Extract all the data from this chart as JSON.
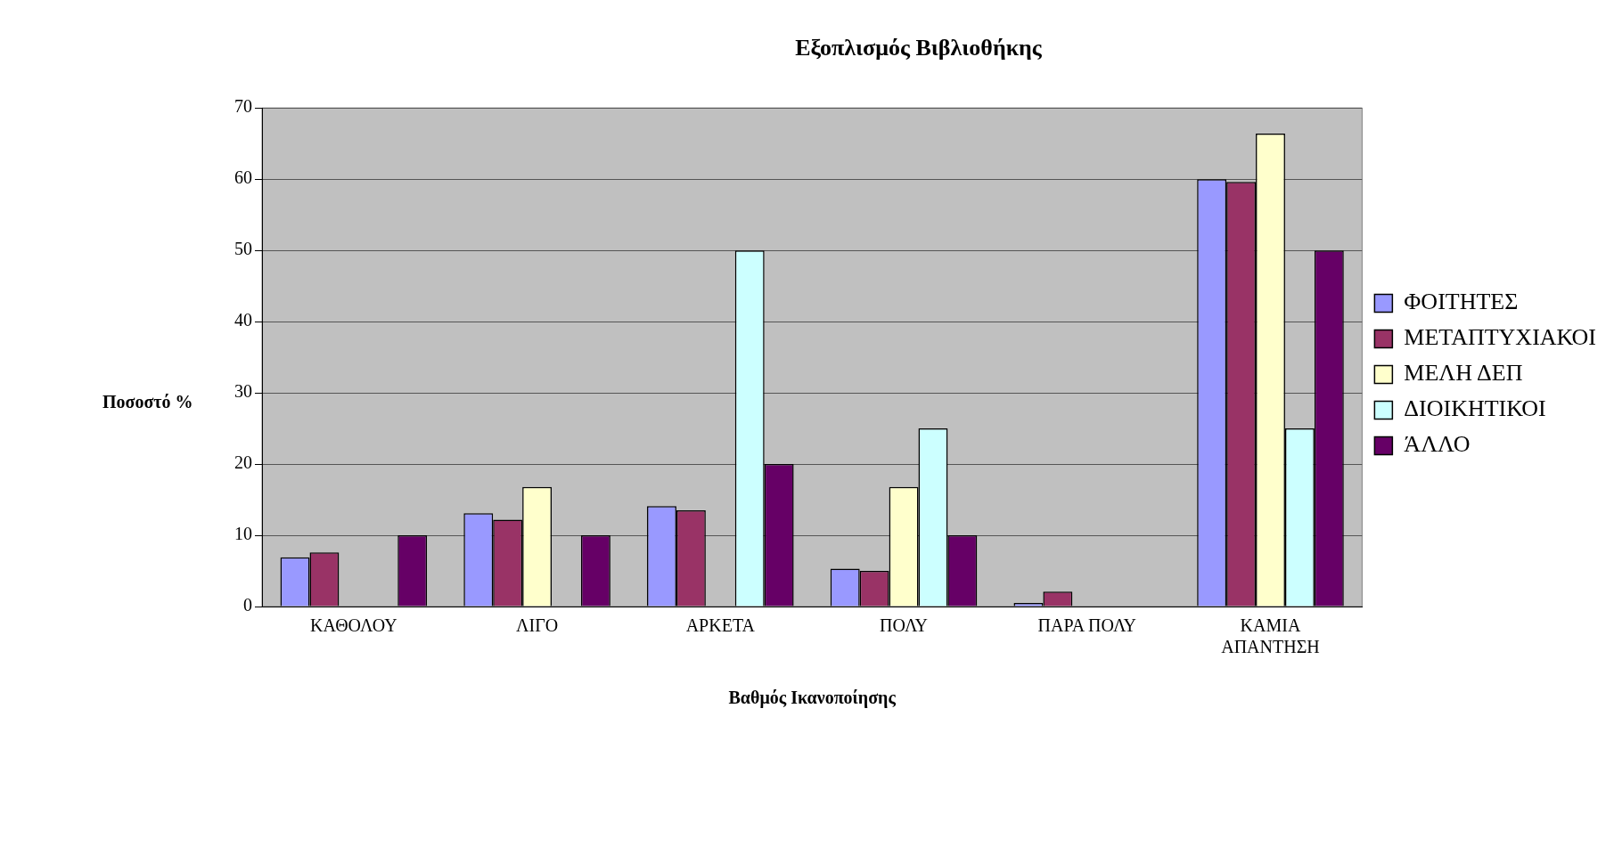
{
  "chart_data": {
    "type": "bar",
    "title": "Εξοπλισμός Βιβλιοθήκης",
    "xlabel": "Βαθμός Ικανοποίησης",
    "ylabel": "Ποσοστό %",
    "categories": [
      "ΚΑΘΟΛΟΥ",
      "ΛΙΓΟ",
      "ΑΡΚΕΤΑ",
      "ΠΟΛΥ",
      "ΠΑΡΑ ΠΟΛΥ",
      "ΚΑΜΙΑ ΑΠΑΝΤΗΣΗ"
    ],
    "series": [
      {
        "name": "ΦΟΙΤΗΤΕΣ",
        "color": "#9999ff",
        "values": [
          6.9,
          13.1,
          14.1,
          5.3,
          0.5,
          60.0
        ]
      },
      {
        "name": "ΜΕΤΑΠΤΥΧΙΑΚΟΙ",
        "color": "#993366",
        "values": [
          7.6,
          12.2,
          13.5,
          5.0,
          2.1,
          59.6
        ]
      },
      {
        "name": "ΜΕΛΗ ΔΕΠ",
        "color": "#ffffcc",
        "values": [
          0,
          16.8,
          0,
          16.8,
          0,
          66.4
        ]
      },
      {
        "name": "ΔΙΟΙΚΗΤΙΚΟΙ",
        "color": "#ccffff",
        "values": [
          0,
          0,
          50,
          25,
          0,
          25
        ]
      },
      {
        "name": "ΆΛΛΟ",
        "color": "#660066",
        "values": [
          10,
          10,
          20,
          10,
          0,
          50
        ]
      }
    ],
    "ylim": [
      0,
      70
    ],
    "yticks": [
      0,
      10,
      20,
      30,
      40,
      50,
      60,
      70
    ],
    "grid": "y",
    "legend": "right"
  }
}
